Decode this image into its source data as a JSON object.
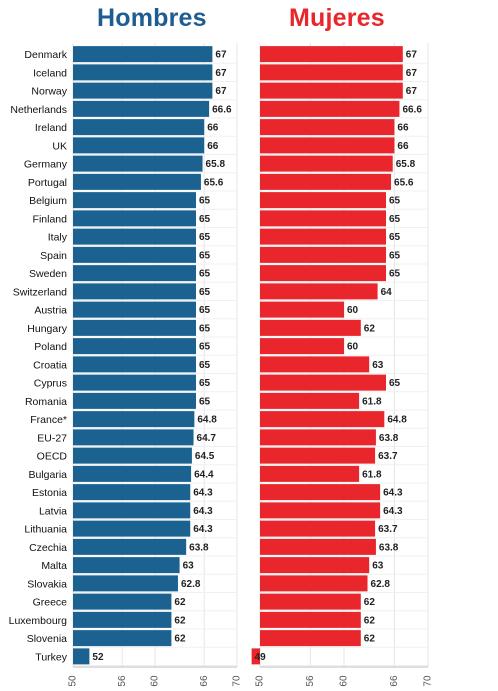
{
  "chart_data": [
    {
      "type": "bar",
      "orientation": "horizontal",
      "title": "Hombres",
      "color": "#1b6291",
      "xlim": [
        50,
        70
      ],
      "xticks": [
        "50",
        "56",
        "60",
        "66",
        "70"
      ],
      "categories": [
        "Denmark",
        "Iceland",
        "Norway",
        "Netherlands",
        "Ireland",
        "UK",
        "Germany",
        "Portugal",
        "Belgium",
        "Finland",
        "Italy",
        "Spain",
        "Sweden",
        "Switzerland",
        "Austria",
        "Hungary",
        "Poland",
        "Croatia",
        "Cyprus",
        "Romania",
        "France*",
        "EU-27",
        "OECD",
        "Bulgaria",
        "Estonia",
        "Latvia",
        "Lithuania",
        "Czechia",
        "Malta",
        "Slovakia",
        "Greece",
        "Luxembourg",
        "Slovenia",
        "Turkey"
      ],
      "values": [
        67,
        67,
        67,
        66.6,
        66,
        66,
        65.8,
        65.6,
        65,
        65,
        65,
        65,
        65,
        65,
        65,
        65,
        65,
        65,
        65,
        65,
        64.8,
        64.7,
        64.5,
        64.4,
        64.3,
        64.3,
        64.3,
        63.8,
        63,
        62.8,
        62,
        62,
        62,
        52
      ],
      "value_labels": [
        "67",
        "67",
        "67",
        "66.6",
        "66",
        "66",
        "65.8",
        "65.6",
        "65",
        "65",
        "65",
        "65",
        "65",
        "65",
        "65",
        "65",
        "65",
        "65",
        "65",
        "65",
        "64.8",
        "64.7",
        "64.5",
        "64.4",
        "64.3",
        "64.3",
        "64.3",
        "63.8",
        "63",
        "62.8",
        "62",
        "62",
        "62",
        "52"
      ]
    },
    {
      "type": "bar",
      "orientation": "horizontal",
      "title": "Mujeres",
      "color": "#e8262b",
      "xlim": [
        50,
        70
      ],
      "xticks": [
        "50",
        "56",
        "60",
        "66",
        "70"
      ],
      "categories": [
        "Denmark",
        "Iceland",
        "Norway",
        "Netherlands",
        "Ireland",
        "UK",
        "Germany",
        "Portugal",
        "Belgium",
        "Finland",
        "Italy",
        "Spain",
        "Sweden",
        "Switzerland",
        "Austria",
        "Hungary",
        "Poland",
        "Croatia",
        "Cyprus",
        "Romania",
        "France*",
        "EU-27",
        "OECD",
        "Bulgaria",
        "Estonia",
        "Latvia",
        "Lithuania",
        "Czechia",
        "Malta",
        "Slovakia",
        "Greece",
        "Luxembourg",
        "Slovenia",
        "Turkey"
      ],
      "values": [
        67,
        67,
        67,
        66.6,
        66,
        66,
        65.8,
        65.6,
        65,
        65,
        65,
        65,
        65,
        64,
        60,
        62,
        60,
        63,
        65,
        61.8,
        64.8,
        63.8,
        63.7,
        61.8,
        64.3,
        64.3,
        63.7,
        63.8,
        63,
        62.8,
        62,
        62,
        62,
        49
      ],
      "value_labels": [
        "67",
        "67",
        "67",
        "66.6",
        "66",
        "66",
        "65.8",
        "65.6",
        "65",
        "65",
        "65",
        "65",
        "65",
        "64",
        "60",
        "62",
        "60",
        "63",
        "65",
        "61.8",
        "64.8",
        "63.8",
        "63.7",
        "61.8",
        "64.3",
        "64.3",
        "63.7",
        "63.8",
        "63",
        "62.8",
        "62",
        "62",
        "62",
        "49"
      ]
    }
  ]
}
